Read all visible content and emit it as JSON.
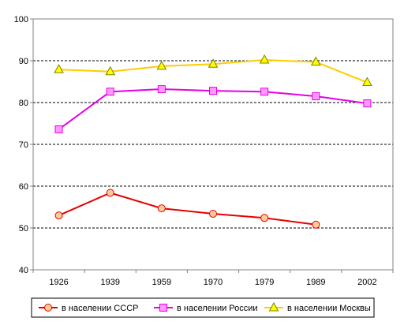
{
  "chart_data": {
    "type": "line",
    "title": "",
    "xlabel": "",
    "ylabel": "",
    "categories": [
      "1926",
      "1939",
      "1959",
      "1970",
      "1979",
      "1989",
      "2002"
    ],
    "ylim": [
      40,
      100
    ],
    "yticks": [
      "40",
      "50",
      "60",
      "70",
      "80",
      "90",
      "100"
    ],
    "grid": "horizontal dashed at 50, 60, 70, 80, 90",
    "legend": "bottom",
    "series": [
      {
        "name": "в населении СССР",
        "color": "#e60000",
        "marker": "circle",
        "marker_fill": "#ffcc99",
        "values": [
          53.0,
          58.4,
          54.7,
          53.4,
          52.4,
          50.8,
          null
        ]
      },
      {
        "name": "в населении России",
        "color": "#e600e6",
        "marker": "square",
        "marker_fill": "#ff99ff",
        "values": [
          73.6,
          82.6,
          83.2,
          82.8,
          82.6,
          81.5,
          79.8
        ]
      },
      {
        "name": "в населении Москвы",
        "color": "#ffcc00",
        "marker": "triangle",
        "marker_fill": "#ffff00",
        "values": [
          87.9,
          87.4,
          88.7,
          89.2,
          90.2,
          89.7,
          84.8
        ]
      }
    ]
  }
}
